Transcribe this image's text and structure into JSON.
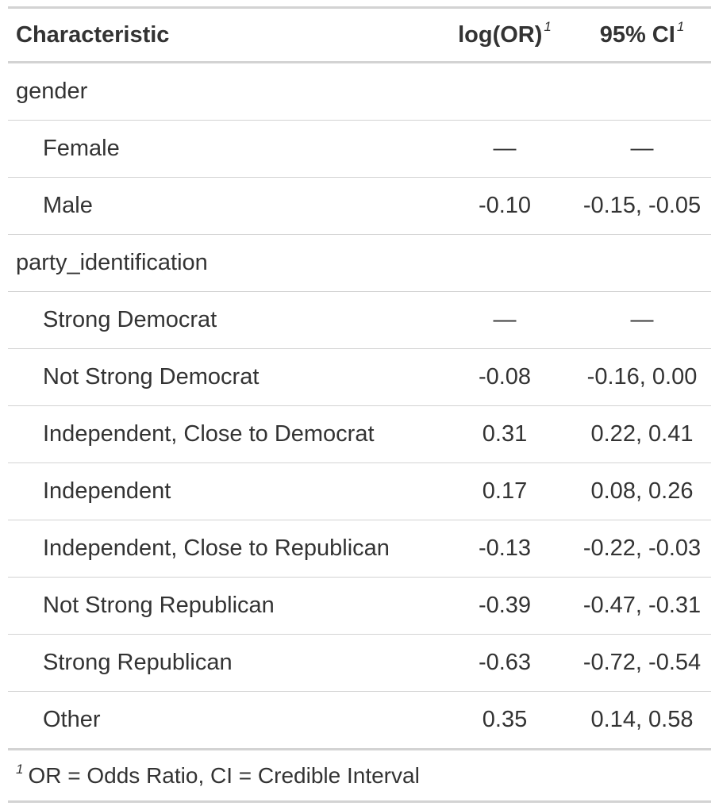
{
  "table": {
    "headers": {
      "characteristic": "Characteristic",
      "estimate": "log(OR)",
      "ci": "95% CI",
      "estimate_marker": "1",
      "ci_marker": "1"
    },
    "rows": [
      {
        "label": "gender",
        "estimate": "",
        "ci": ""
      },
      {
        "label": "Female",
        "estimate": "—",
        "ci": "—"
      },
      {
        "label": "Male",
        "estimate": "-0.10",
        "ci": "-0.15, -0.05"
      },
      {
        "label": "party_identification",
        "estimate": "",
        "ci": ""
      },
      {
        "label": "Strong Democrat",
        "estimate": "—",
        "ci": "—"
      },
      {
        "label": "Not Strong Democrat",
        "estimate": "-0.08",
        "ci": "-0.16, 0.00"
      },
      {
        "label": "Independent, Close to Democrat",
        "estimate": "0.31",
        "ci": "0.22, 0.41"
      },
      {
        "label": "Independent",
        "estimate": "0.17",
        "ci": "0.08, 0.26"
      },
      {
        "label": "Independent, Close to Republican",
        "estimate": "-0.13",
        "ci": "-0.22, -0.03"
      },
      {
        "label": "Not Strong Republican",
        "estimate": "-0.39",
        "ci": "-0.47, -0.31"
      },
      {
        "label": "Strong Republican",
        "estimate": "-0.63",
        "ci": "-0.72, -0.54"
      },
      {
        "label": "Other",
        "estimate": "0.35",
        "ci": "0.14, 0.58"
      }
    ],
    "footnote": {
      "marker": "1",
      "text": "OR = Odds Ratio, CI = Credible Interval"
    }
  }
}
